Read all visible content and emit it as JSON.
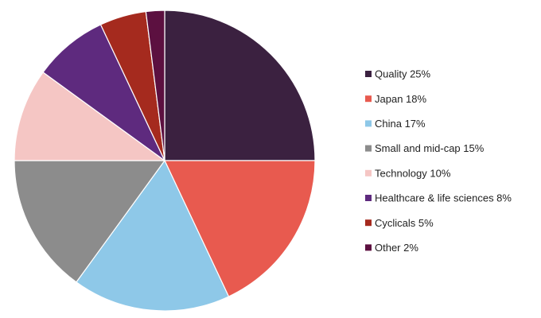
{
  "chart_data": {
    "type": "pie",
    "title": "",
    "start_angle_deg": 0,
    "direction": "clockwise",
    "legend_position": "right",
    "slices": [
      {
        "label": "Quality 25%",
        "value": 25,
        "color": "#3b2140"
      },
      {
        "label": "Japan 18%",
        "value": 18,
        "color": "#e85a4f"
      },
      {
        "label": "China 17%",
        "value": 17,
        "color": "#8ec8e8"
      },
      {
        "label": "Small and mid-cap 15%",
        "value": 15,
        "color": "#8c8c8c"
      },
      {
        "label": "Technology 10%",
        "value": 10,
        "color": "#f5c6c4"
      },
      {
        "label": "Healthcare & life sciences 8%",
        "value": 8,
        "color": "#5e2a7e"
      },
      {
        "label": "Cyclicals 5%",
        "value": 5,
        "color": "#a52a1e"
      },
      {
        "label": "Other 2%",
        "value": 2,
        "color": "#5c1040"
      }
    ]
  }
}
